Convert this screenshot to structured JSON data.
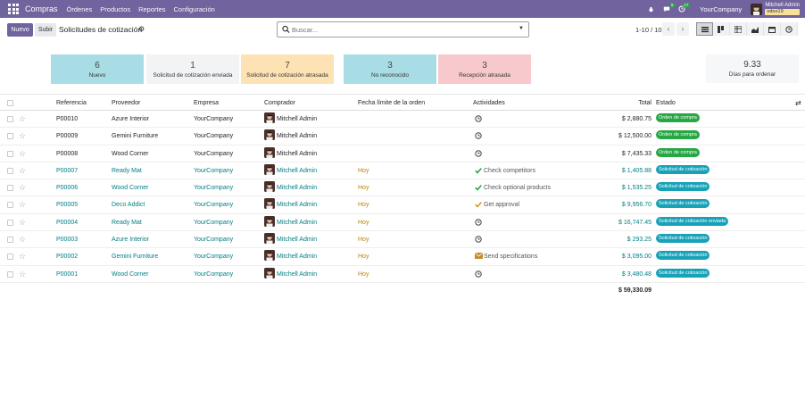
{
  "navbar": {
    "brand": "Compras",
    "menus": [
      "Órdenes",
      "Productos",
      "Reportes",
      "Configuración"
    ],
    "chat_badge": "5",
    "activity_badge": "17",
    "company": "YourCompany",
    "user": "Mitchell Admin",
    "database": "odoo19"
  },
  "control": {
    "new_label": "Nuevo",
    "upload_label": "Subir",
    "title": "Solicitudes de cotización",
    "search_placeholder": "Buscar...",
    "pager": "1-10 / 10"
  },
  "stats": [
    {
      "num": "6",
      "label": "Nuevo",
      "color": "#a8dde5"
    },
    {
      "num": "1",
      "label": "Solicitud de cotización enviada",
      "color": "#f2f3f5"
    },
    {
      "num": "7",
      "label": "Solicitud de cotización atrasada",
      "color": "#fde2b4"
    },
    {
      "num": "3",
      "label": "No reconocido",
      "color": "#a8dde5"
    },
    {
      "num": "3",
      "label": "Recepción atrasada",
      "color": "#f8c9cc"
    }
  ],
  "stat_right": {
    "num": "9.33",
    "label": "Días para ordenar"
  },
  "columns": {
    "ref": "Referencia",
    "vendor": "Proveedor",
    "company": "Empresa",
    "buyer": "Comprador",
    "deadline": "Fecha límite de la orden",
    "activities": "Actividades",
    "total": "Total",
    "status": "Estado"
  },
  "rows": [
    {
      "ref": "P00010",
      "vendor": "Azure Interior",
      "company": "YourCompany",
      "buyer": "Mitchell Admin",
      "deadline": "",
      "activity": "",
      "activity_icon": "clock",
      "total": "$ 2,880.75",
      "status": "Orden de compra",
      "status_color": "green",
      "link": false
    },
    {
      "ref": "P00009",
      "vendor": "Gemini Furniture",
      "company": "YourCompany",
      "buyer": "Mitchell Admin",
      "deadline": "",
      "activity": "",
      "activity_icon": "clock",
      "total": "$ 12,500.00",
      "status": "Orden de compra",
      "status_color": "green",
      "link": false
    },
    {
      "ref": "P00008",
      "vendor": "Wood Corner",
      "company": "YourCompany",
      "buyer": "Mitchell Admin",
      "deadline": "",
      "activity": "",
      "activity_icon": "clock",
      "total": "$ 7,435.33",
      "status": "Orden de compra",
      "status_color": "green",
      "link": false
    },
    {
      "ref": "P00007",
      "vendor": "Ready Mat",
      "company": "YourCompany",
      "buyer": "Mitchell Admin",
      "deadline": "Hoy",
      "activity": "Check competitors",
      "activity_icon": "check",
      "total": "$ 1,405.88",
      "status": "Solicitud de cotización",
      "status_color": "teal",
      "link": true
    },
    {
      "ref": "P00006",
      "vendor": "Wood Corner",
      "company": "YourCompany",
      "buyer": "Mitchell Admin",
      "deadline": "Hoy",
      "activity": "Check optional products",
      "activity_icon": "check",
      "total": "$ 1,535.25",
      "status": "Solicitud de cotización",
      "status_color": "teal",
      "link": true
    },
    {
      "ref": "P00005",
      "vendor": "Deco Addict",
      "company": "YourCompany",
      "buyer": "Mitchell Admin",
      "deadline": "Hoy",
      "activity": "Get approval",
      "activity_icon": "check-yellow",
      "total": "$ 9,956.70",
      "status": "Solicitud de cotización",
      "status_color": "teal",
      "link": true
    },
    {
      "ref": "P00004",
      "vendor": "Ready Mat",
      "company": "YourCompany",
      "buyer": "Mitchell Admin",
      "deadline": "Hoy",
      "activity": "",
      "activity_icon": "clock",
      "total": "$ 16,747.45",
      "status": "Solicitud de cotización enviada",
      "status_color": "teal",
      "link": true
    },
    {
      "ref": "P00003",
      "vendor": "Azure Interior",
      "company": "YourCompany",
      "buyer": "Mitchell Admin",
      "deadline": "Hoy",
      "activity": "",
      "activity_icon": "clock",
      "total": "$ 293.25",
      "status": "Solicitud de cotización",
      "status_color": "teal",
      "link": true
    },
    {
      "ref": "P00002",
      "vendor": "Gemini Furniture",
      "company": "YourCompany",
      "buyer": "Mitchell Admin",
      "deadline": "Hoy",
      "activity": "Send specifications",
      "activity_icon": "envelope",
      "total": "$ 3,095.00",
      "status": "Solicitud de cotización",
      "status_color": "teal",
      "link": true
    },
    {
      "ref": "P00001",
      "vendor": "Wood Corner",
      "company": "YourCompany",
      "buyer": "Mitchell Admin",
      "deadline": "Hoy",
      "activity": "",
      "activity_icon": "clock",
      "total": "$ 3,480.48",
      "status": "Solicitud de cotización",
      "status_color": "teal",
      "link": true
    }
  ],
  "grand_total": "$ 59,330.09"
}
